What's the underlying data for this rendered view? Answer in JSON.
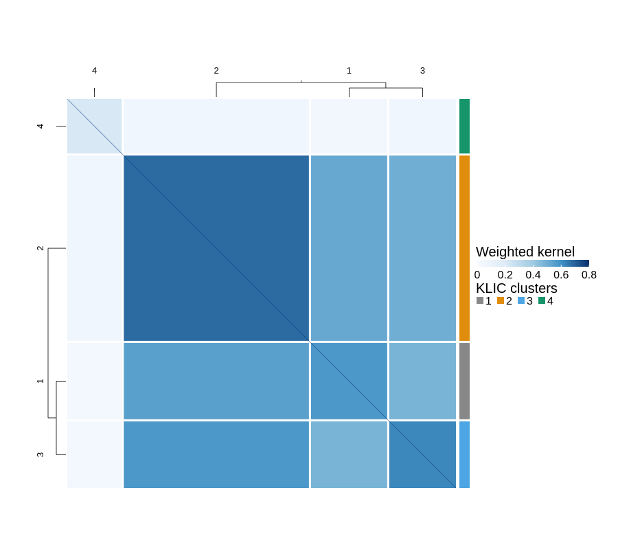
{
  "chart_data": {
    "type": "heatmap",
    "column_cluster_order": [
      "4",
      "2",
      "1",
      "3"
    ],
    "row_cluster_order": [
      "4",
      "2",
      "1",
      "3"
    ],
    "block_sizes": {
      "4": 80,
      "2": 272,
      "1": 112,
      "3": 98
    },
    "cluster_colors": {
      "1": "#888888",
      "2": "#E08C0C",
      "3": "#4DA5E3",
      "4": "#17956A"
    },
    "blocks": [
      [
        0.22,
        0.06,
        0.05,
        0.06
      ],
      [
        0.06,
        0.68,
        0.52,
        0.5
      ],
      [
        0.04,
        0.55,
        0.58,
        0.48
      ],
      [
        0.04,
        0.58,
        0.48,
        0.62
      ]
    ],
    "legend": {
      "title": "Weighted kernel",
      "ticks": [
        "0",
        "0.2",
        "0.4",
        "0.6",
        "0.8"
      ],
      "range": [
        0,
        0.8
      ],
      "colors": [
        "#F7FBFF",
        "#DEEBF7",
        "#9ECAE1",
        "#4292C6",
        "#08306B"
      ]
    },
    "annotation_legend": {
      "title": "KLIC clusters",
      "items": [
        "1",
        "2",
        "3",
        "4"
      ]
    }
  }
}
